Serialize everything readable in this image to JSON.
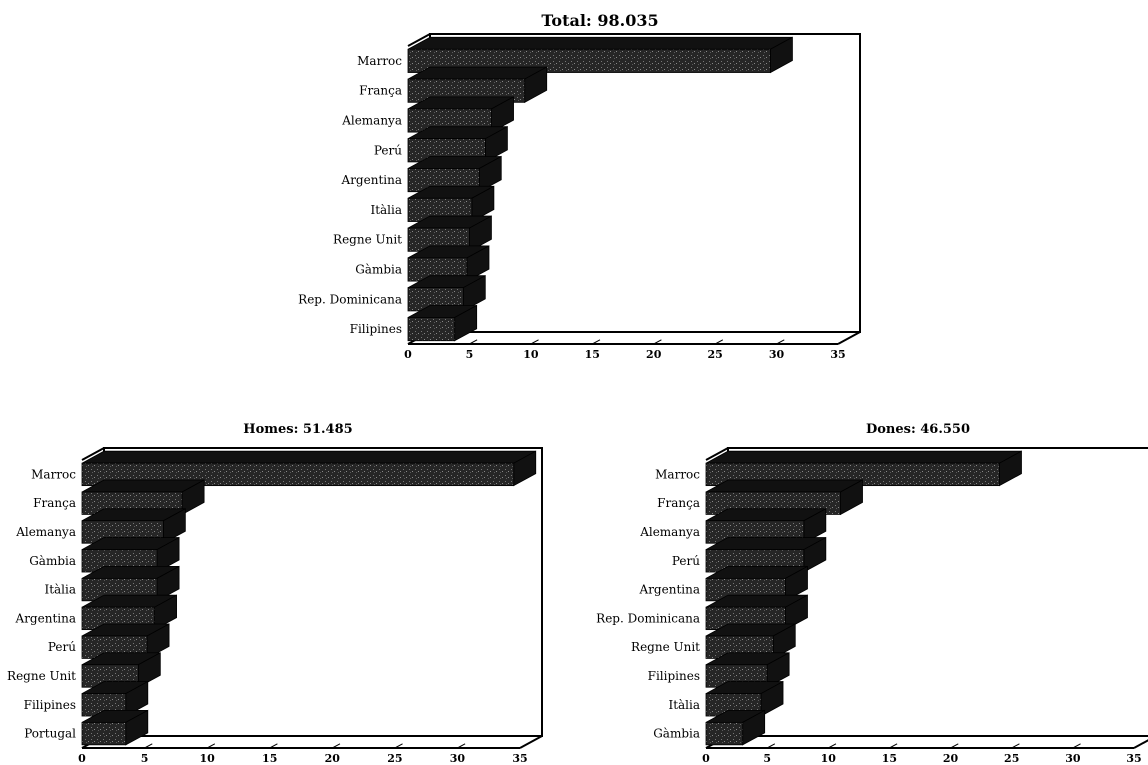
{
  "colors": {
    "bar": "#222222",
    "bar_texture": "#6a6a6a",
    "grid": "#555555",
    "frame": "#000000"
  },
  "chart_data": [
    {
      "type": "bar",
      "orientation": "horizontal",
      "title": "Total: 98.035",
      "categories": [
        "Marroc",
        "França",
        "Alemanya",
        "Perú",
        "Argentina",
        "Itàlia",
        "Regne Unit",
        "Gàmbia",
        "Rep. Dominicana",
        "Filipines"
      ],
      "values": [
        29.5,
        9.5,
        6.8,
        6.3,
        5.8,
        5.2,
        5.0,
        4.8,
        4.5,
        3.8
      ],
      "xlim": [
        0,
        35
      ],
      "xticks": [
        "0",
        "5",
        "10",
        "15",
        "20",
        "25",
        "30",
        "35"
      ],
      "grid": true,
      "legend": "none"
    },
    {
      "type": "bar",
      "orientation": "horizontal",
      "title": "Homes: 51.485",
      "categories": [
        "Marroc",
        "França",
        "Alemanya",
        "Gàmbia",
        "Itàlia",
        "Argentina",
        "Perú",
        "Regne Unit",
        "Filipines",
        "Portugal"
      ],
      "values": [
        34.5,
        8.0,
        6.5,
        6.0,
        6.0,
        5.8,
        5.2,
        4.5,
        3.5,
        3.5
      ],
      "xlim": [
        0,
        35
      ],
      "xticks": [
        "0",
        "5",
        "10",
        "15",
        "20",
        "25",
        "30",
        "35"
      ],
      "grid": true,
      "legend": "none"
    },
    {
      "type": "bar",
      "orientation": "horizontal",
      "title": "Dones: 46.550",
      "categories": [
        "Marroc",
        "França",
        "Alemanya",
        "Perú",
        "Argentina",
        "Rep. Dominicana",
        "Regne Unit",
        "Filipines",
        "Itàlia",
        "Gàmbia"
      ],
      "values": [
        24.0,
        11.0,
        8.0,
        8.0,
        6.5,
        6.5,
        5.5,
        5.0,
        4.5,
        3.0
      ],
      "xlim": [
        0,
        35
      ],
      "xticks": [
        "0",
        "5",
        "10",
        "15",
        "20",
        "25",
        "30",
        "35"
      ],
      "grid": true,
      "legend": "none"
    }
  ]
}
